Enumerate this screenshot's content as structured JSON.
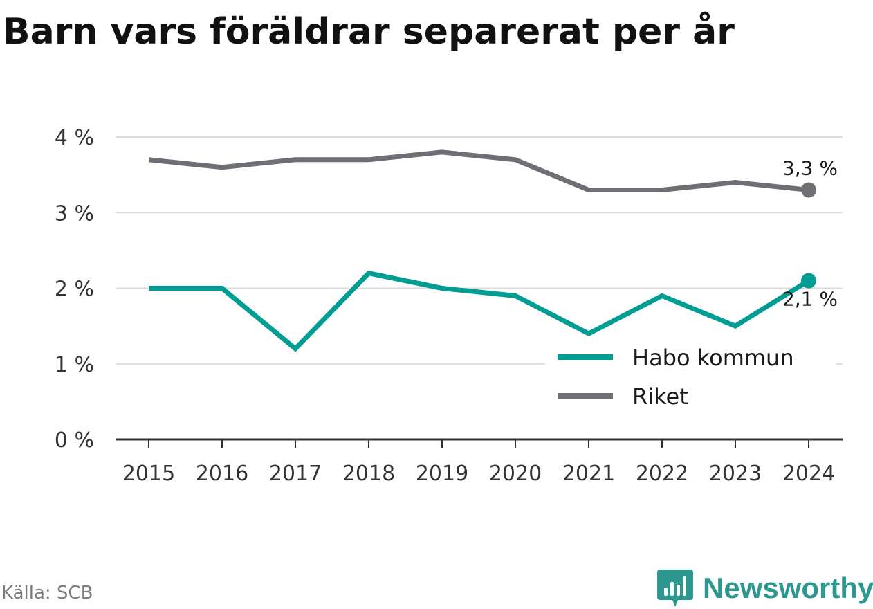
{
  "title": "Barn vars föräldrar separerat per år",
  "source": "Källa: SCB",
  "brand": {
    "name": "Newsworthy",
    "icon": "newsworthy-logo-icon",
    "color": "#2e9890"
  },
  "chart_data": {
    "type": "line",
    "title": "Barn vars föräldrar separerat per år",
    "xlabel": "",
    "ylabel": "",
    "x": [
      "2015",
      "2016",
      "2017",
      "2018",
      "2019",
      "2020",
      "2021",
      "2022",
      "2023",
      "2024"
    ],
    "ylim": [
      0,
      4
    ],
    "yticks": [
      0,
      1,
      2,
      3,
      4
    ],
    "ytick_labels": [
      "0 %",
      "1 %",
      "2 %",
      "3 %",
      "4 %"
    ],
    "grid": true,
    "legend_position": "bottom-right",
    "series": [
      {
        "name": "Habo kommun",
        "color": "#009d93",
        "values": [
          2.0,
          2.0,
          1.2,
          2.2,
          2.0,
          1.9,
          1.4,
          1.9,
          1.5,
          2.1
        ],
        "end_label": "2,1 %"
      },
      {
        "name": "Riket",
        "color": "#6f6e74",
        "values": [
          3.7,
          3.6,
          3.7,
          3.7,
          3.8,
          3.7,
          3.3,
          3.3,
          3.4,
          3.3
        ],
        "end_label": "3,3 %"
      }
    ]
  }
}
